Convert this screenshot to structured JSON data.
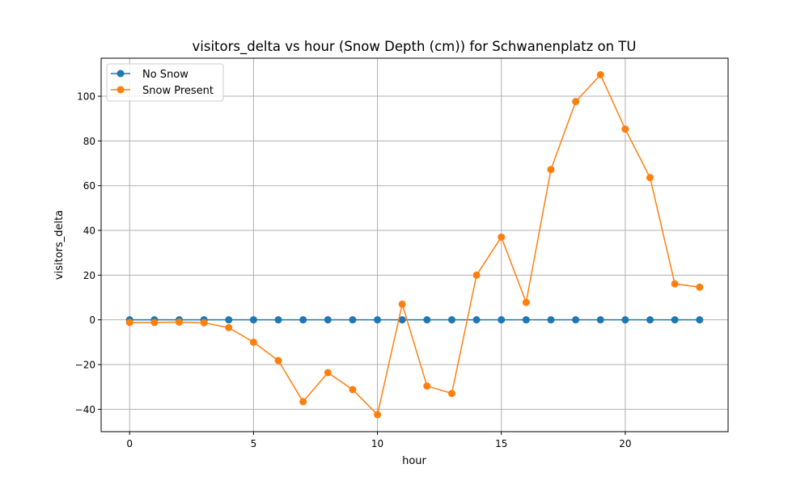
{
  "chart_data": {
    "type": "line",
    "title": "visitors_delta vs hour (Snow Depth (cm)) for Schwanenplatz on TU",
    "xlabel": "hour",
    "ylabel": "visitors_delta",
    "xlim": [
      -1.15,
      24.15
    ],
    "ylim": [
      -50,
      117
    ],
    "xticks": [
      0,
      5,
      10,
      15,
      20
    ],
    "yticks": [
      -40,
      -20,
      0,
      20,
      40,
      60,
      80,
      100
    ],
    "grid": true,
    "legend_position": "upper left",
    "x": [
      0,
      1,
      2,
      3,
      4,
      5,
      6,
      7,
      8,
      9,
      10,
      11,
      12,
      13,
      14,
      15,
      16,
      17,
      18,
      19,
      20,
      21,
      22,
      23
    ],
    "series": [
      {
        "name": "No Snow",
        "color": "#1f77b4",
        "marker": "circle",
        "values": [
          0,
          0,
          0,
          0,
          0,
          0,
          0,
          0,
          0,
          0,
          0,
          0,
          0,
          0,
          0,
          0,
          0,
          0,
          0,
          0,
          0,
          0,
          0,
          0
        ]
      },
      {
        "name": "Snow Present",
        "color": "#ff7f0e",
        "marker": "circle",
        "values": [
          -1.2,
          -1.2,
          -1.0,
          -1.3,
          -3.5,
          -10.0,
          -18.2,
          -36.6,
          -23.6,
          -31.2,
          -42.4,
          7.0,
          -29.6,
          -32.9,
          20.0,
          37.0,
          7.8,
          67.2,
          97.6,
          109.6,
          85.3,
          63.6,
          16.1,
          14.6
        ]
      }
    ]
  }
}
